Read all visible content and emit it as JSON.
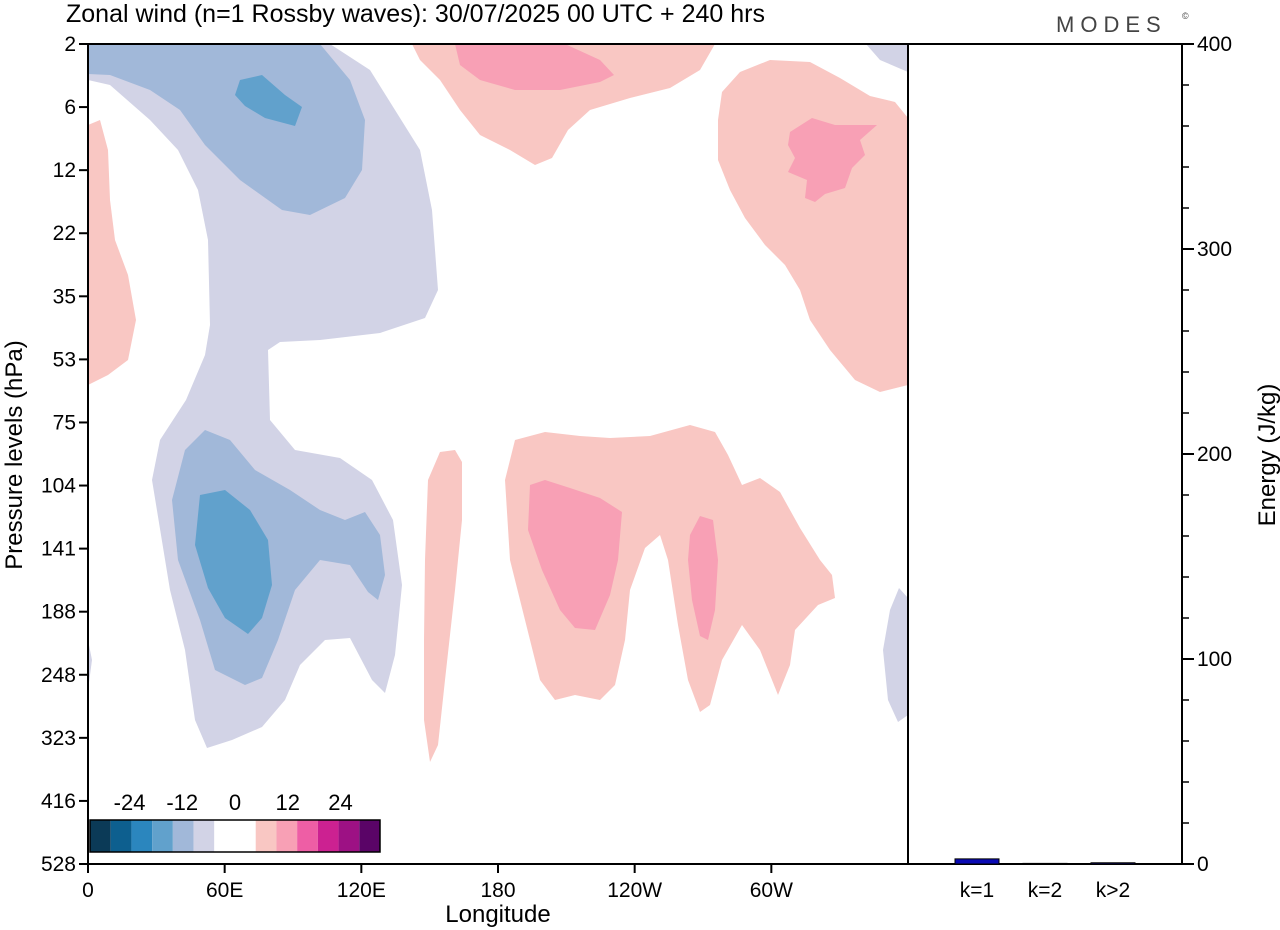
{
  "title": "Zonal wind (n=1 Rossby waves):  30/07/2025  00 UTC  + 240 hrs",
  "brand": "MODES",
  "brand_mark": "©",
  "colors": {
    "neg": [
      "#0b3a57",
      "#0d5f8f",
      "#2b86be",
      "#61a1cc",
      "#a1b8d9",
      "#d2d3e6"
    ],
    "zero": "#ffffff",
    "pos": [
      "#f9c7c3",
      "#f8a0b5",
      "#ee5ea5",
      "#cc2191",
      "#9d1184",
      "#5a0467"
    ],
    "bar": "#0a0ab4"
  },
  "chart_data": [
    {
      "type": "heatmap",
      "name": "zonal-wind-cross-section",
      "xlabel": "Longitude",
      "ylabel": "Pressure levels (hPa)",
      "x_ticks": [
        "0",
        "60E",
        "120E",
        "180",
        "120W",
        "60W"
      ],
      "y_ticks": [
        "2",
        "6",
        "12",
        "22",
        "35",
        "53",
        "75",
        "104",
        "141",
        "188",
        "248",
        "323",
        "416",
        "528"
      ],
      "colorbar": {
        "ticks": [
          "-24",
          "-12",
          "0",
          "12",
          "24"
        ],
        "levels": [
          -30,
          -25,
          -20,
          -15,
          -10,
          -5,
          0,
          5,
          10,
          15,
          20,
          25,
          30
        ]
      },
      "features": [
        {
          "sign": "negative",
          "region": "upper strat 20E-115E, 2-35 hPa",
          "peak": "-10 to -15"
        },
        {
          "sign": "negative",
          "region": "upper trop 30E-130E, 75-330 hPa",
          "peak": "-10 to -15"
        },
        {
          "sign": "positive",
          "region": "upper strat 135E-150W, 2-12 hPa",
          "peak": "5 to 10"
        },
        {
          "sign": "positive",
          "region": "strat 90W-0, 4-50 hPa",
          "peak": "5 to 10"
        },
        {
          "sign": "positive",
          "region": "upper trop 150E-100W, 75-300 hPa",
          "peak": "5 to 10"
        }
      ]
    },
    {
      "type": "bar",
      "name": "energy-spectrum",
      "ylabel": "Energy (J/kg)",
      "ylim": [
        0,
        400
      ],
      "y_ticks": [
        "0",
        "100",
        "200",
        "300",
        "400"
      ],
      "categories": [
        "k=1",
        "k=2",
        "k>2"
      ],
      "values": [
        2.5,
        0.3,
        0.6
      ]
    }
  ]
}
